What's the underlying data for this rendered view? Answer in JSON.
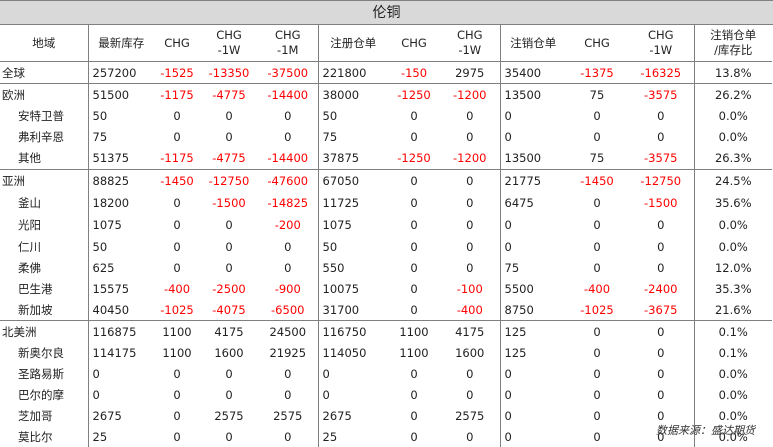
{
  "title": "伦铜",
  "headers": [
    "地域",
    "最新库存",
    "CHG",
    "CHG\n-1W",
    "CHG\n-1M",
    "注册仓单",
    "CHG",
    "CHG\n-1W",
    "注销仓单",
    "CHG",
    "CHG\n-1W",
    "注销仓单\n/库存比"
  ],
  "rows": [
    [
      "全球",
      "257200",
      "-1525",
      "-13350",
      "-37500",
      "221800",
      "-150",
      "2975",
      "35400",
      "-1375",
      "-16325",
      "13.8%"
    ],
    [
      "欧洲",
      "51500",
      "-1175",
      "-4775",
      "-14400",
      "38000",
      "-1250",
      "-1200",
      "13500",
      "75",
      "-3575",
      "26.2%"
    ],
    [
      "安特卫普",
      "50",
      "0",
      "0",
      "0",
      "50",
      "0",
      "0",
      "0",
      "0",
      "0",
      "0.0%"
    ],
    [
      "弗利辛恩",
      "75",
      "0",
      "0",
      "0",
      "75",
      "0",
      "0",
      "0",
      "0",
      "0",
      "0.0%"
    ],
    [
      "其他",
      "51375",
      "-1175",
      "-4775",
      "-14400",
      "37875",
      "-1250",
      "-1200",
      "13500",
      "75",
      "-3575",
      "26.3%"
    ],
    [
      "亚洲",
      "88825",
      "-1450",
      "-12750",
      "-47600",
      "67050",
      "0",
      "0",
      "21775",
      "-1450",
      "-12750",
      "24.5%"
    ],
    [
      "釜山",
      "18200",
      "0",
      "-1500",
      "-14825",
      "11725",
      "0",
      "0",
      "6475",
      "0",
      "-1500",
      "35.6%"
    ],
    [
      "光阳",
      "1075",
      "0",
      "0",
      "-200",
      "1075",
      "0",
      "0",
      "0",
      "0",
      "0",
      "0.0%"
    ],
    [
      "仁川",
      "50",
      "0",
      "0",
      "0",
      "50",
      "0",
      "0",
      "0",
      "0",
      "0",
      "0.0%"
    ],
    [
      "柔佛",
      "625",
      "0",
      "0",
      "0",
      "550",
      "0",
      "0",
      "75",
      "0",
      "0",
      "12.0%"
    ],
    [
      "巴生港",
      "15575",
      "-400",
      "-2500",
      "-900",
      "10075",
      "0",
      "-100",
      "5500",
      "-400",
      "-2400",
      "35.3%"
    ],
    [
      "新加坡",
      "40450",
      "-1025",
      "-4075",
      "-6500",
      "31700",
      "0",
      "-400",
      "8750",
      "-1025",
      "-3675",
      "21.6%"
    ],
    [
      "北美洲",
      "116875",
      "1100",
      "4175",
      "24500",
      "116750",
      "1100",
      "4175",
      "125",
      "0",
      "0",
      "0.1%"
    ],
    [
      "新奥尔良",
      "114175",
      "1100",
      "1600",
      "21925",
      "114050",
      "1100",
      "1600",
      "125",
      "0",
      "0",
      "0.1%"
    ],
    [
      "圣路易斯",
      "0",
      "0",
      "0",
      "0",
      "0",
      "0",
      "0",
      "0",
      "0",
      "0",
      "0.0%"
    ],
    [
      "巴尔的摩",
      "0",
      "0",
      "0",
      "0",
      "0",
      "0",
      "0",
      "0",
      "0",
      "0",
      "0.0%"
    ],
    [
      "芝加哥",
      "2675",
      "0",
      "2575",
      "2575",
      "2675",
      "0",
      "2575",
      "0",
      "0",
      "0",
      "0.0%"
    ],
    [
      "莫比尔",
      "25",
      "0",
      "0",
      "0",
      "25",
      "0",
      "0",
      "0",
      "0",
      "0",
      "0.0%"
    ]
  ],
  "footer": "数据来源：盛达期货"
}
